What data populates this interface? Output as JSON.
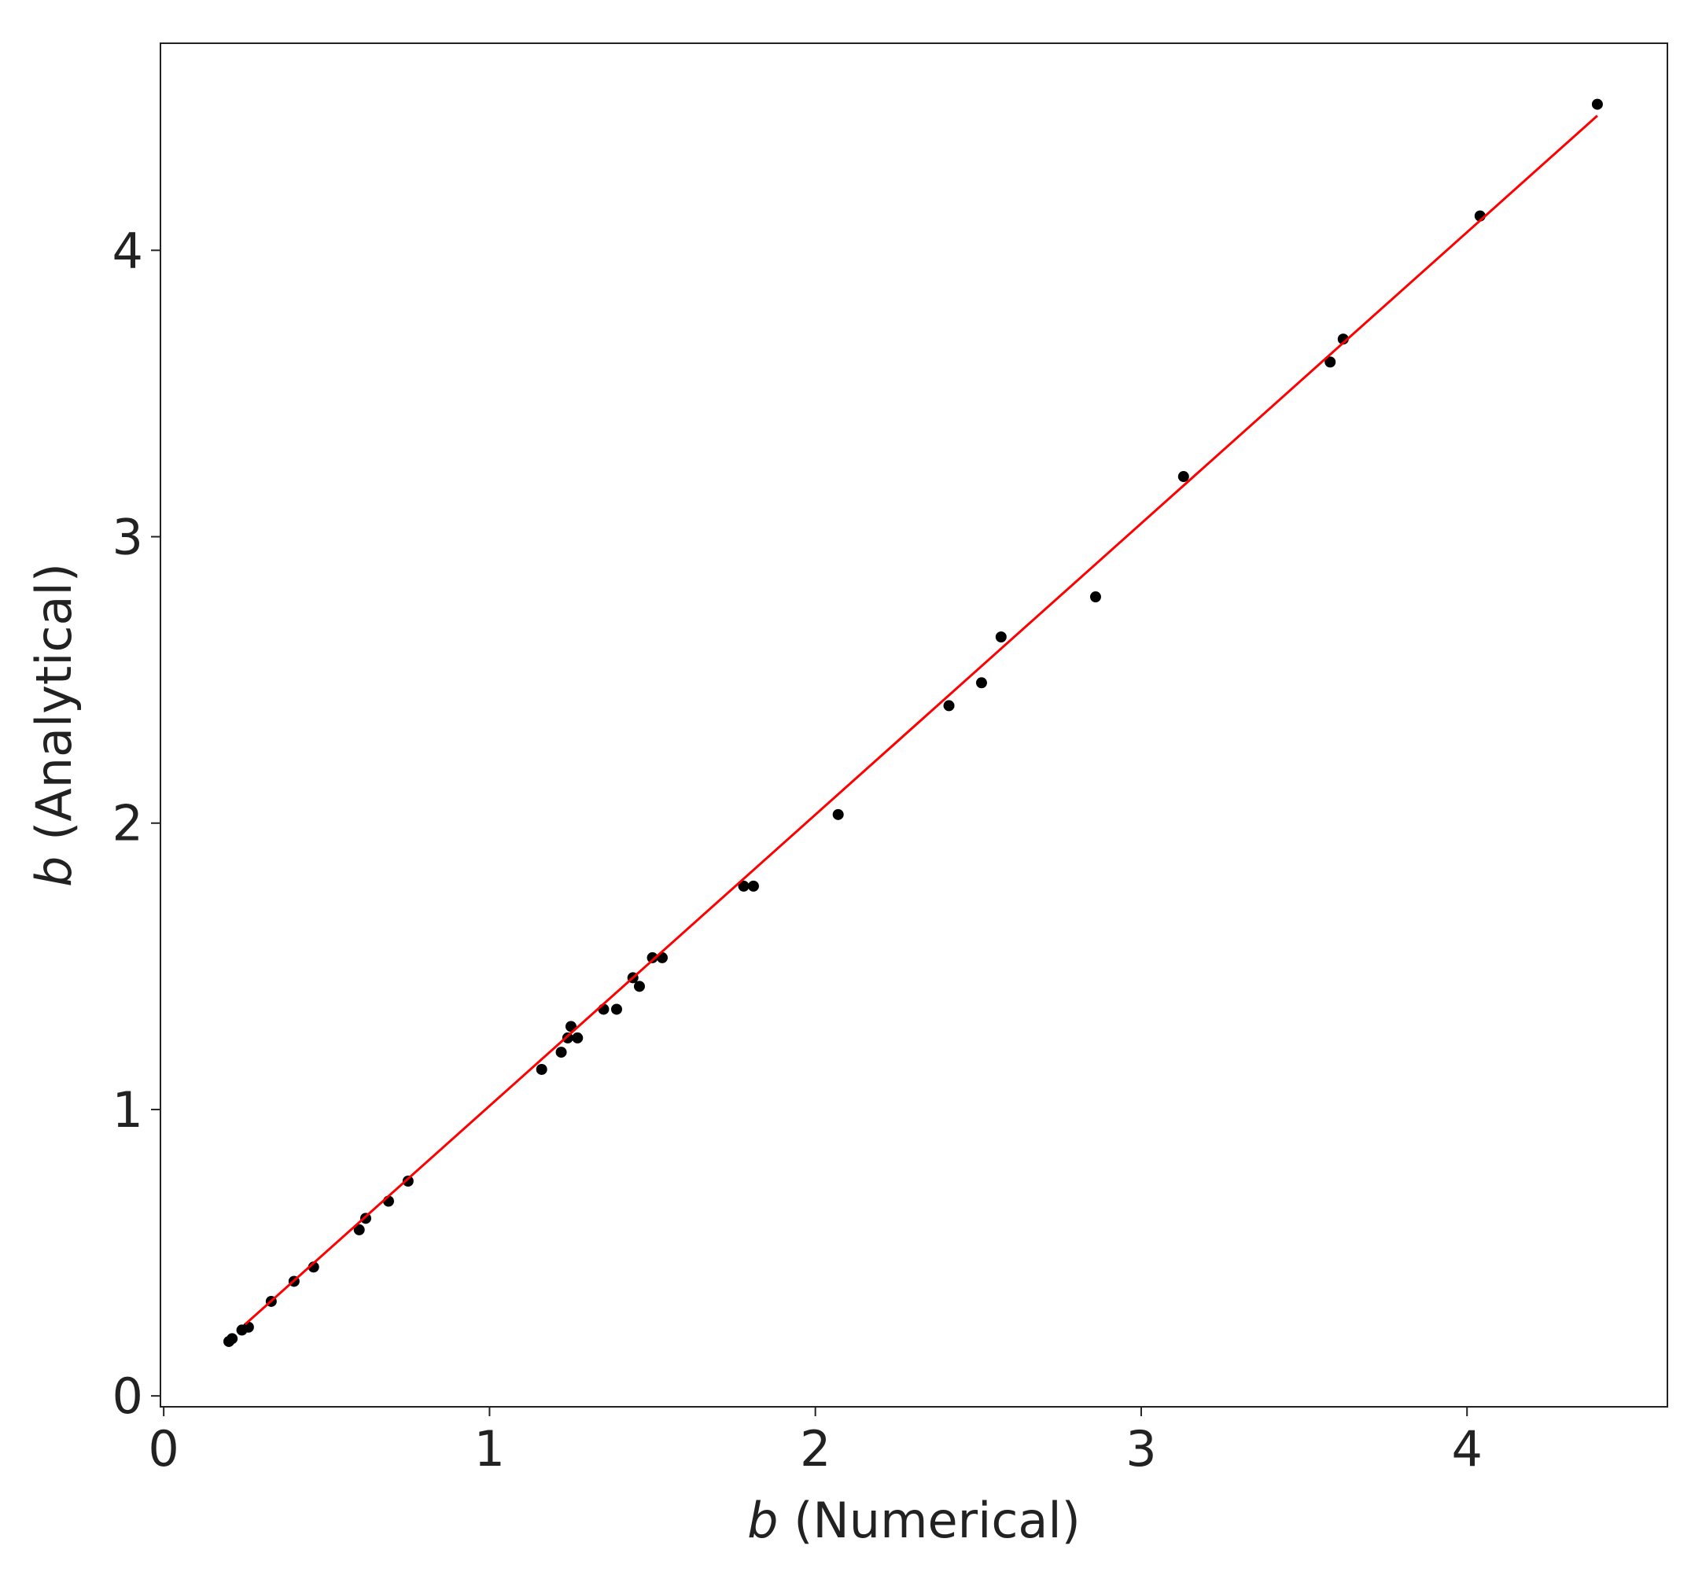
{
  "chart_data": {
    "type": "scatter",
    "xlabel": {
      "symbol": "b",
      "text": "(Numerical)"
    },
    "ylabel": {
      "symbol": "b",
      "text": "(Analytical)"
    },
    "xlim": [
      -0.01,
      4.615
    ],
    "ylim": [
      -0.038,
      4.723
    ],
    "xticks": [
      0,
      1,
      2,
      3,
      4
    ],
    "yticks": [
      0,
      1,
      2,
      3,
      4
    ],
    "series": [
      {
        "type": "scatter",
        "color": "#000000",
        "x": [
          0.2,
          0.21,
          0.24,
          0.26,
          0.33,
          0.4,
          0.46,
          0.6,
          0.62,
          0.69,
          0.75,
          1.16,
          1.22,
          1.24,
          1.25,
          1.27,
          1.35,
          1.39,
          1.44,
          1.46,
          1.5,
          1.53,
          1.78,
          1.81,
          2.07,
          2.41,
          2.51,
          2.57,
          2.86,
          3.13,
          3.58,
          3.62,
          4.04,
          4.4
        ],
        "y": [
          0.19,
          0.2,
          0.23,
          0.24,
          0.33,
          0.4,
          0.45,
          0.58,
          0.62,
          0.68,
          0.75,
          1.14,
          1.2,
          1.25,
          1.29,
          1.25,
          1.35,
          1.35,
          1.46,
          1.43,
          1.53,
          1.53,
          1.78,
          1.78,
          2.03,
          2.41,
          2.49,
          2.65,
          2.79,
          3.21,
          3.61,
          3.69,
          4.12,
          4.51
        ]
      },
      {
        "type": "line",
        "color": "#ff0000",
        "x": [
          0.25,
          4.4
        ],
        "y": [
          0.25,
          4.47
        ]
      }
    ]
  }
}
